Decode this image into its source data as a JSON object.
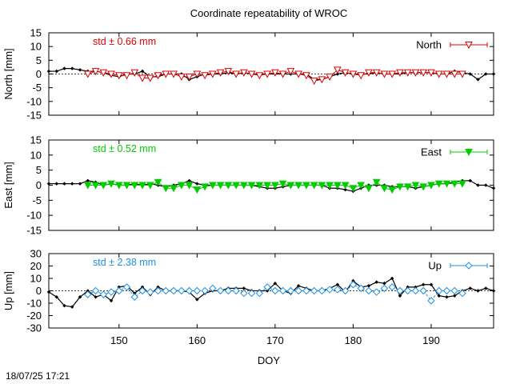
{
  "title": "Coordinate repeatability of WROC",
  "timestamp": "18/07/25 17:21",
  "xlabel": "DOY",
  "chart_data": [
    {
      "type": "line",
      "id": "north",
      "ylabel": "North [mm]",
      "ylim": [
        -15,
        15
      ],
      "yticks": [
        15,
        10,
        5,
        0,
        -5,
        -10,
        -15
      ],
      "xlim": [
        141,
        198
      ],
      "xticks": [
        150,
        160,
        170,
        180,
        190
      ],
      "grid": false,
      "zero_line": true,
      "stat_text": "std ± 0.66 mm",
      "stat_color": "#dd0000",
      "legend": "North",
      "legend_position": "top-right",
      "marker": "open-triangle-down",
      "series": [
        {
          "role": "data",
          "color": "#000000",
          "x": [
            141,
            142,
            143,
            144,
            145,
            146,
            147,
            148,
            149,
            150,
            151,
            152,
            153,
            154,
            155,
            156,
            157,
            158,
            159,
            160,
            161,
            162,
            163,
            164,
            165,
            166,
            167,
            168,
            169,
            170,
            171,
            172,
            173,
            174,
            175,
            176,
            177,
            178,
            179,
            180,
            181,
            182,
            183,
            184,
            185,
            186,
            187,
            188,
            189,
            190,
            191,
            192,
            193,
            194,
            195,
            196,
            197,
            198
          ],
          "values": [
            1.0,
            1.0,
            2.0,
            2.0,
            1.5,
            1.0,
            1.0,
            0.5,
            -0.5,
            -1.0,
            0.0,
            0.0,
            1.0,
            -1.0,
            -1.0,
            0.0,
            0.0,
            0.0,
            -2.0,
            -1.0,
            0.0,
            0.0,
            0.0,
            0.5,
            0.0,
            0.5,
            0.0,
            0.0,
            0.0,
            0.0,
            0.0,
            0.0,
            0.0,
            0.0,
            -2.0,
            -2.0,
            -1.0,
            0.0,
            0.5,
            0.0,
            0.0,
            0.0,
            0.5,
            0.0,
            0.0,
            0.0,
            0.5,
            0.5,
            0.5,
            0.5,
            0.0,
            0.0,
            1.0,
            0.5,
            0.0,
            -2.0,
            0.0,
            0.0
          ]
        },
        {
          "role": "model",
          "color": "#dd0000",
          "x": [
            146,
            147,
            148,
            149,
            150,
            151,
            152,
            153,
            154,
            155,
            156,
            157,
            158,
            159,
            160,
            161,
            162,
            163,
            164,
            165,
            166,
            167,
            168,
            169,
            170,
            171,
            172,
            173,
            174,
            175,
            176,
            177,
            178,
            179,
            180,
            181,
            182,
            183,
            184,
            185,
            186,
            187,
            188,
            189,
            190,
            191,
            192,
            193,
            194
          ],
          "values": [
            0.0,
            1.0,
            0.5,
            0.0,
            -0.5,
            -0.5,
            0.5,
            -1.5,
            -1.5,
            -0.5,
            0.0,
            0.0,
            -1.0,
            -1.0,
            0.0,
            -0.5,
            0.0,
            0.5,
            1.0,
            0.0,
            0.5,
            0.0,
            -0.5,
            0.0,
            0.5,
            0.0,
            1.0,
            0.0,
            -0.5,
            -2.5,
            -2.0,
            -1.0,
            1.5,
            0.5,
            0.0,
            -0.5,
            0.5,
            0.5,
            0.0,
            0.0,
            0.5,
            0.5,
            0.5,
            0.5,
            0.5,
            0.0,
            0.0,
            0.0,
            0.0
          ]
        }
      ]
    },
    {
      "type": "line",
      "id": "east",
      "ylabel": "East [mm]",
      "ylim": [
        -15,
        15
      ],
      "yticks": [
        15,
        10,
        5,
        0,
        -5,
        -10,
        -15
      ],
      "xlim": [
        141,
        198
      ],
      "xticks": [
        150,
        160,
        170,
        180,
        190
      ],
      "grid": false,
      "zero_line": false,
      "stat_text": "std ± 0.52 mm",
      "stat_color": "#00cc00",
      "legend": "East",
      "legend_position": "top-right",
      "marker": "filled-triangle-down",
      "series": [
        {
          "role": "data",
          "color": "#000000",
          "x": [
            141,
            142,
            143,
            144,
            145,
            146,
            147,
            148,
            149,
            150,
            151,
            152,
            153,
            154,
            155,
            156,
            157,
            158,
            159,
            160,
            161,
            162,
            163,
            164,
            165,
            166,
            167,
            168,
            169,
            170,
            171,
            172,
            173,
            174,
            175,
            176,
            177,
            178,
            179,
            180,
            181,
            182,
            183,
            184,
            185,
            186,
            187,
            188,
            189,
            190,
            191,
            192,
            193,
            194,
            195,
            196,
            197,
            198
          ],
          "values": [
            0.5,
            0.5,
            0.5,
            0.5,
            0.5,
            1.5,
            1.0,
            0.0,
            0.5,
            0.0,
            0.0,
            0.5,
            0.0,
            0.5,
            0.0,
            -0.5,
            0.0,
            0.5,
            1.5,
            0.5,
            0.0,
            0.0,
            0.0,
            0.0,
            0.0,
            0.0,
            0.0,
            -0.5,
            -1.0,
            -1.0,
            -0.5,
            0.0,
            0.0,
            0.0,
            0.0,
            0.0,
            -1.0,
            -1.0,
            -1.5,
            -2.0,
            -1.0,
            0.0,
            0.0,
            0.0,
            -0.5,
            -0.5,
            -0.5,
            -1.0,
            -0.5,
            0.0,
            0.5,
            0.5,
            1.0,
            1.5,
            1.5,
            0.0,
            0.0,
            -1.0
          ]
        },
        {
          "role": "model",
          "color": "#00cc00",
          "x": [
            146,
            147,
            148,
            149,
            150,
            151,
            152,
            153,
            154,
            155,
            156,
            157,
            158,
            159,
            160,
            161,
            162,
            163,
            164,
            165,
            166,
            167,
            168,
            169,
            170,
            171,
            172,
            173,
            174,
            175,
            176,
            177,
            178,
            179,
            180,
            181,
            182,
            183,
            184,
            185,
            186,
            187,
            188,
            189,
            190,
            191,
            192,
            193,
            194
          ],
          "values": [
            0.0,
            0.0,
            0.0,
            0.5,
            0.0,
            0.0,
            0.0,
            0.0,
            0.0,
            1.0,
            -1.0,
            -1.0,
            0.0,
            0.0,
            -1.5,
            -0.5,
            0.0,
            0.0,
            0.0,
            0.0,
            0.0,
            0.0,
            0.0,
            0.0,
            0.0,
            0.5,
            0.0,
            0.0,
            0.0,
            0.0,
            0.0,
            0.0,
            0.0,
            0.0,
            -1.0,
            0.0,
            -1.0,
            1.0,
            -1.0,
            -1.5,
            -0.5,
            -0.5,
            0.0,
            -0.5,
            0.0,
            0.5,
            0.5,
            0.5,
            0.5
          ]
        }
      ]
    },
    {
      "type": "line",
      "id": "up",
      "ylabel": "Up [mm]",
      "ylim": [
        -30,
        30
      ],
      "yticks": [
        30,
        20,
        10,
        0,
        -10,
        -20,
        -30
      ],
      "xlim": [
        141,
        198
      ],
      "xticks": [
        150,
        160,
        170,
        180,
        190
      ],
      "grid": false,
      "zero_line": true,
      "stat_text": "std ± 2.38 mm",
      "stat_color": "#2090e0",
      "legend": "Up",
      "legend_position": "top-right",
      "marker": "open-diamond",
      "series": [
        {
          "role": "data",
          "color": "#000000",
          "x": [
            141,
            142,
            143,
            144,
            145,
            146,
            147,
            148,
            149,
            150,
            151,
            152,
            153,
            154,
            155,
            156,
            157,
            158,
            159,
            160,
            161,
            162,
            163,
            164,
            165,
            166,
            167,
            168,
            169,
            170,
            171,
            172,
            173,
            174,
            175,
            176,
            177,
            178,
            179,
            180,
            181,
            182,
            183,
            184,
            185,
            186,
            187,
            188,
            189,
            190,
            191,
            192,
            193,
            194,
            195,
            196,
            197,
            198
          ],
          "values": [
            -1,
            -5,
            -12,
            -13,
            -5,
            0,
            -5,
            -3,
            -8,
            3,
            4,
            -2,
            3,
            -3,
            3,
            0,
            0,
            0,
            -1,
            -7,
            -2,
            0,
            0,
            2,
            2,
            2,
            0,
            0,
            0,
            6,
            0,
            -2,
            4,
            2,
            0,
            0,
            2,
            5,
            -1,
            8,
            3,
            4,
            7,
            6,
            10,
            -4,
            3,
            3,
            5,
            5,
            -4,
            -5,
            -4,
            0,
            2,
            0,
            2,
            0
          ]
        },
        {
          "role": "model",
          "color": "#2090e0",
          "x": [
            146,
            147,
            148,
            149,
            150,
            151,
            152,
            153,
            154,
            155,
            156,
            157,
            158,
            159,
            160,
            161,
            162,
            163,
            164,
            165,
            166,
            167,
            168,
            169,
            170,
            171,
            172,
            173,
            174,
            175,
            176,
            177,
            178,
            179,
            180,
            181,
            182,
            183,
            184,
            185,
            186,
            187,
            188,
            189,
            190,
            191,
            192,
            193,
            194
          ],
          "values": [
            -3,
            0,
            -3,
            -1,
            0,
            3,
            -5,
            0,
            -1,
            0,
            0,
            0,
            0,
            0,
            0,
            0,
            2,
            0,
            0,
            0,
            -2,
            -2,
            -2,
            3,
            0,
            0,
            0,
            0,
            0,
            0,
            0,
            1,
            1,
            0,
            5,
            2,
            0,
            -1,
            2,
            3,
            0,
            0,
            0,
            0,
            -8,
            0,
            0,
            0,
            -2
          ]
        }
      ]
    }
  ]
}
